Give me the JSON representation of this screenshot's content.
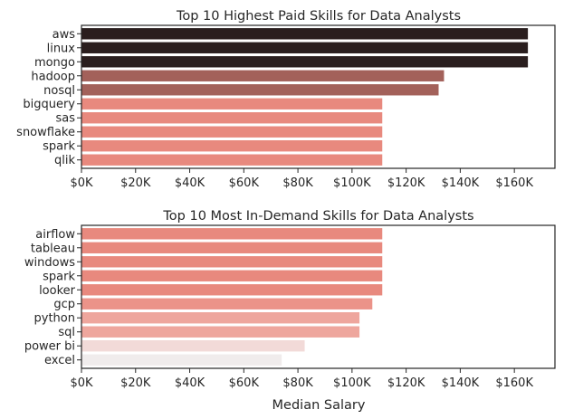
{
  "chart_data": [
    {
      "type": "bar",
      "orientation": "horizontal",
      "title": "Top 10 Highest Paid Skills for Data Analysts",
      "xlabel": "",
      "ylabel": "",
      "xlim": [
        0,
        175000
      ],
      "xticks": [
        0,
        20000,
        40000,
        60000,
        80000,
        100000,
        120000,
        140000,
        160000
      ],
      "xtick_labels": [
        "$0K",
        "$20K",
        "$40K",
        "$60K",
        "$80K",
        "$100K",
        "$120K",
        "$140K",
        "$160K"
      ],
      "grid": false,
      "categories": [
        "aws",
        "linux",
        "mongo",
        "hadoop",
        "nosql",
        "bigquery",
        "sas",
        "snowflake",
        "spark",
        "qlik"
      ],
      "values": [
        165000,
        165000,
        165000,
        134000,
        132000,
        111175,
        111175,
        111175,
        111175,
        111175
      ],
      "colors": [
        "#2a1e1e",
        "#2a1e1e",
        "#2a1e1e",
        "#a3615a",
        "#a3615a",
        "#e8897e",
        "#e8897e",
        "#e8897e",
        "#e8897e",
        "#e8897e"
      ]
    },
    {
      "type": "bar",
      "orientation": "horizontal",
      "title": "Top 10 Most In-Demand Skills for Data Analysts",
      "xlabel": "Median Salary",
      "ylabel": "",
      "xlim": [
        0,
        175000
      ],
      "xticks": [
        0,
        20000,
        40000,
        60000,
        80000,
        100000,
        120000,
        140000,
        160000
      ],
      "xtick_labels": [
        "$0K",
        "$20K",
        "$40K",
        "$60K",
        "$80K",
        "$100K",
        "$120K",
        "$140K",
        "$160K"
      ],
      "grid": false,
      "categories": [
        "airflow",
        "tableau",
        "windows",
        "spark",
        "looker",
        "gcp",
        "python",
        "sql",
        "power bi",
        "excel"
      ],
      "values": [
        111175,
        111175,
        111175,
        111175,
        111175,
        107500,
        102750,
        102750,
        82500,
        74000
      ],
      "colors": [
        "#e8897e",
        "#e8897e",
        "#e8897e",
        "#e8897e",
        "#e8897e",
        "#eb9389",
        "#eea69d",
        "#eea69d",
        "#f2dad8",
        "#f0ecec"
      ]
    }
  ]
}
